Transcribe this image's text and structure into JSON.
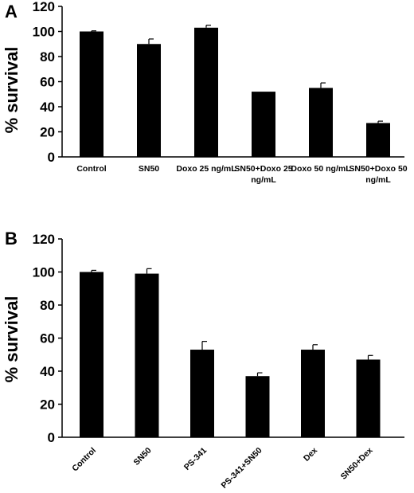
{
  "chart_data": [
    {
      "type": "bar",
      "panel_label": "A",
      "ylabel": "% survival",
      "xlabel": "",
      "ylim": [
        0,
        120
      ],
      "yticks": [
        0,
        20,
        40,
        60,
        80,
        100,
        120
      ],
      "categories": [
        [
          "Control"
        ],
        [
          "SN50"
        ],
        [
          "Doxo 25 ng/mL"
        ],
        [
          "SN50+Doxo 25",
          "ng/mL"
        ],
        [
          "Doxo 50 ng/mL"
        ],
        [
          "SN50+Doxo 50",
          "ng/mL"
        ]
      ],
      "values": [
        100,
        90,
        103,
        52,
        55,
        27
      ],
      "errors": [
        0.5,
        4,
        2,
        0,
        4,
        1.5
      ],
      "grid": false,
      "legend": "none",
      "bar_color": "#000000"
    },
    {
      "type": "bar",
      "panel_label": "B",
      "ylabel": "% survival",
      "xlabel": "",
      "ylim": [
        0,
        120
      ],
      "yticks": [
        0,
        20,
        40,
        60,
        80,
        100,
        120
      ],
      "categories": [
        [
          "Control"
        ],
        [
          "SN50"
        ],
        [
          "PS-341"
        ],
        [
          "PS-341+SN50"
        ],
        [
          "Dex"
        ],
        [
          "SN50+Dex"
        ]
      ],
      "values": [
        100,
        99,
        53,
        37,
        53,
        47
      ],
      "errors": [
        1,
        3,
        5,
        2,
        3,
        2.5
      ],
      "grid": false,
      "legend": "none",
      "bar_color": "#000000"
    }
  ]
}
